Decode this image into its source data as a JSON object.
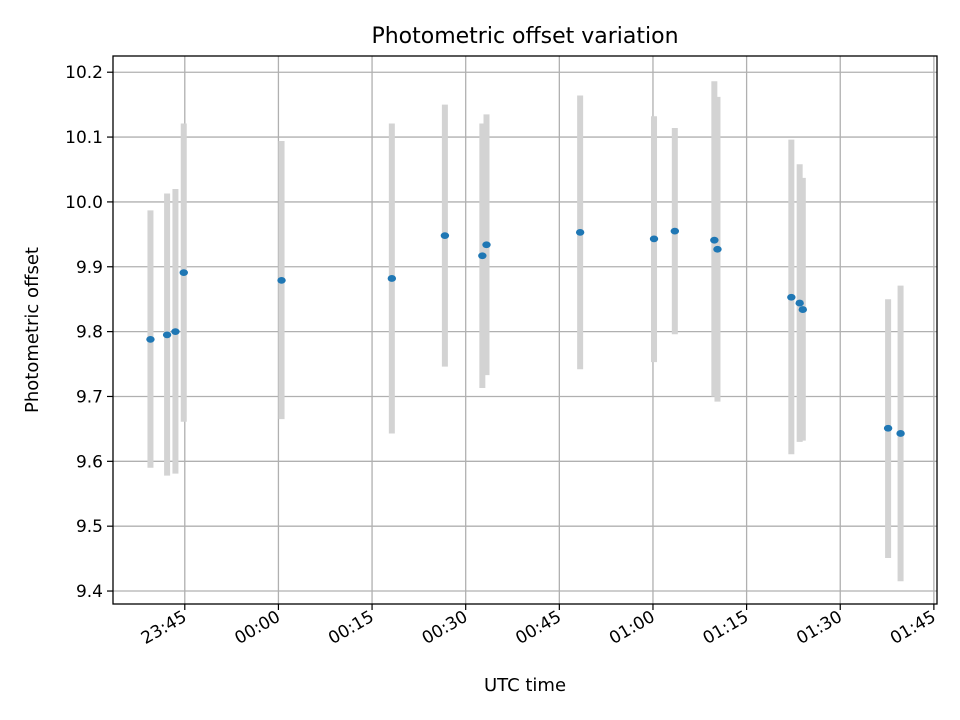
{
  "chart_data": {
    "type": "scatter",
    "title": "Photometric offset variation",
    "xlabel": "UTC time",
    "ylabel": "Photometric offset",
    "grid": true,
    "x_ticks": [
      "23:45",
      "00:00",
      "00:15",
      "00:30",
      "00:45",
      "01:00",
      "01:15",
      "01:30",
      "01:45"
    ],
    "y_ticks": [
      "9.4",
      "9.5",
      "9.6",
      "9.7",
      "9.8",
      "9.9",
      "10.0",
      "10.1",
      "10.2"
    ],
    "ylim": [
      9.38,
      10.225
    ],
    "xlim": [
      "23:33:30",
      "01:45:30"
    ],
    "colors": {
      "point": "#1f77b4",
      "errorbar": "#d3d3d3",
      "grid": "#b0b0b0"
    },
    "points": [
      {
        "x": "23:39:30",
        "y": 9.788,
        "ylow": 9.59,
        "yhigh": 9.987
      },
      {
        "x": "23:42:10",
        "y": 9.795,
        "ylow": 9.578,
        "yhigh": 10.013
      },
      {
        "x": "23:43:30",
        "y": 9.8,
        "ylow": 9.581,
        "yhigh": 10.02
      },
      {
        "x": "23:44:50",
        "y": 9.891,
        "ylow": 9.661,
        "yhigh": 10.121
      },
      {
        "x": "00:00:30",
        "y": 9.879,
        "ylow": 9.665,
        "yhigh": 10.094
      },
      {
        "x": "00:18:10",
        "y": 9.882,
        "ylow": 9.643,
        "yhigh": 10.121
      },
      {
        "x": "00:26:40",
        "y": 9.948,
        "ylow": 9.746,
        "yhigh": 10.15
      },
      {
        "x": "00:32:40",
        "y": 9.917,
        "ylow": 9.713,
        "yhigh": 10.121
      },
      {
        "x": "00:33:20",
        "y": 9.934,
        "ylow": 9.733,
        "yhigh": 10.135
      },
      {
        "x": "00:48:20",
        "y": 9.953,
        "ylow": 9.742,
        "yhigh": 10.164
      },
      {
        "x": "01:00:10",
        "y": 9.943,
        "ylow": 9.753,
        "yhigh": 10.132
      },
      {
        "x": "01:03:30",
        "y": 9.955,
        "ylow": 9.796,
        "yhigh": 10.114
      },
      {
        "x": "01:09:50",
        "y": 9.941,
        "ylow": 9.7,
        "yhigh": 10.186
      },
      {
        "x": "01:10:20",
        "y": 9.927,
        "ylow": 9.692,
        "yhigh": 10.162
      },
      {
        "x": "01:22:10",
        "y": 9.853,
        "ylow": 9.611,
        "yhigh": 10.096
      },
      {
        "x": "01:23:30",
        "y": 9.844,
        "ylow": 9.63,
        "yhigh": 10.058
      },
      {
        "x": "01:24:00",
        "y": 9.834,
        "ylow": 9.632,
        "yhigh": 10.037
      },
      {
        "x": "01:37:40",
        "y": 9.651,
        "ylow": 9.451,
        "yhigh": 9.85
      },
      {
        "x": "01:39:40",
        "y": 9.643,
        "ylow": 9.415,
        "yhigh": 9.871
      }
    ]
  }
}
